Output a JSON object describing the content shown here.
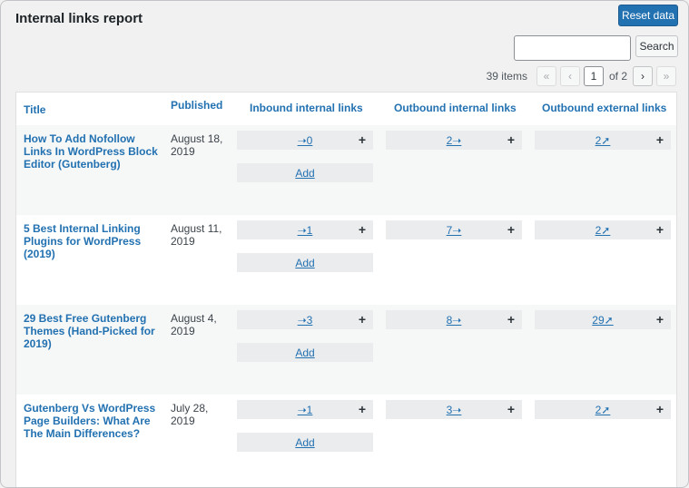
{
  "header": {
    "title": "Internal links report",
    "reset_label": "Reset data"
  },
  "search": {
    "value": "",
    "placeholder": "",
    "button_label": "Search"
  },
  "pagination": {
    "items_label": "39 items",
    "first": "«",
    "prev": "‹",
    "current_page": "1",
    "of_label": "of 2",
    "next": "›",
    "last": "»"
  },
  "columns": {
    "title": "Title",
    "published": "Published",
    "inbound": "Inbound internal links",
    "outbound": "Outbound internal links",
    "external": "Outbound external links"
  },
  "add_label": "Add",
  "plus_symbol": "+",
  "rows": [
    {
      "title": "How To Add Nofollow Links In WordPress Block Editor (Gutenberg)",
      "published": "August 18, 2019",
      "inbound": "➝0",
      "outbound": "2➝",
      "external": "2➚"
    },
    {
      "title": "5 Best Internal Linking Plugins for WordPress (2019)",
      "published": "August 11, 2019",
      "inbound": "➝1",
      "outbound": "7➝",
      "external": "2➚"
    },
    {
      "title": "29 Best Free Gutenberg Themes (Hand-Picked for 2019)",
      "published": "August 4, 2019",
      "inbound": "➝3",
      "outbound": "8➝",
      "external": "29➚"
    },
    {
      "title": "Gutenberg Vs WordPress Page Builders: What Are The Main Differences?",
      "published": "July 28, 2019",
      "inbound": "➝1",
      "outbound": "3➝",
      "external": "2➚"
    }
  ],
  "colors": {
    "link": "#2271b1",
    "primary_button": "#2271b1",
    "row_alt": "#f6f7f7",
    "cell_box": "#ebecee"
  }
}
